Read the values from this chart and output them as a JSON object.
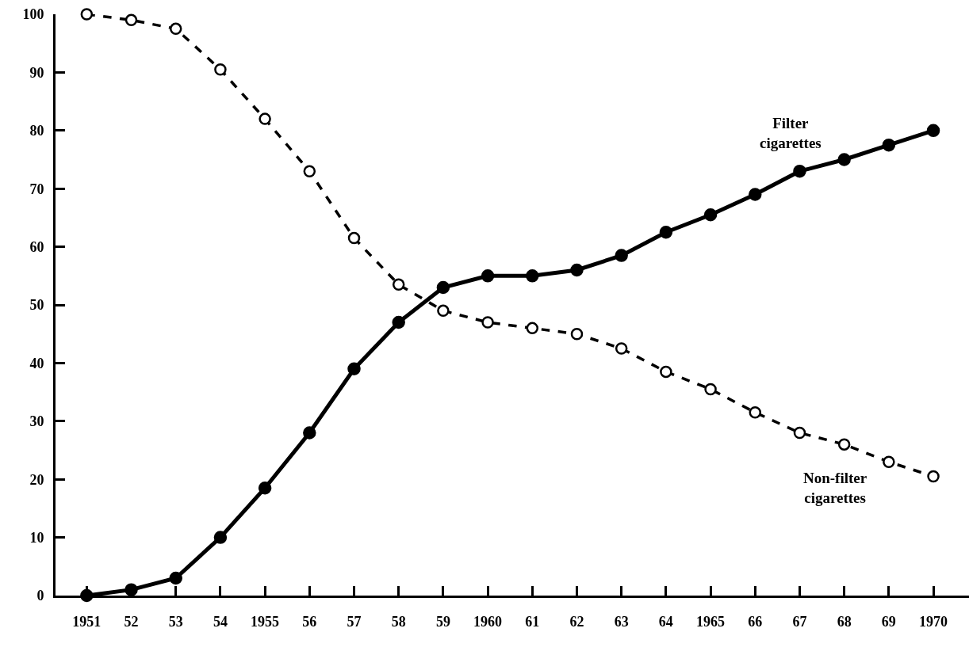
{
  "chart_data": {
    "type": "line",
    "x": [
      1951,
      1952,
      1953,
      1954,
      1955,
      1956,
      1957,
      1958,
      1959,
      1960,
      1961,
      1962,
      1963,
      1964,
      1965,
      1966,
      1967,
      1968,
      1969,
      1970
    ],
    "series": [
      {
        "name": "Filter cigarettes",
        "color": "#000000",
        "line_style": "solid",
        "marker": "circle",
        "values": [
          0,
          1,
          3,
          10,
          18.5,
          28,
          39,
          47,
          53,
          55,
          55,
          56,
          58.5,
          62.5,
          65.5,
          69,
          73,
          75,
          77.5,
          80
        ]
      },
      {
        "name": "Non-filter cigarettes",
        "color": "#000000",
        "line_style": "dashed",
        "marker": "circle",
        "values": [
          100,
          99,
          97.5,
          90.5,
          82,
          73,
          61.5,
          53.5,
          49,
          47,
          46,
          45,
          42.5,
          38.5,
          35.5,
          31.5,
          28,
          26,
          23,
          20.5
        ]
      }
    ],
    "xlim": [
      1950.3,
      1970.8
    ],
    "xticks": [
      1951,
      {
        "value": 1952,
        "label": "52"
      },
      {
        "value": 1953,
        "label": "53"
      },
      {
        "value": 1954,
        "label": "54"
      },
      1955,
      {
        "value": 1956,
        "label": "56"
      },
      {
        "value": 1957,
        "label": "57"
      },
      {
        "value": 1958,
        "label": "58"
      },
      {
        "value": 1959,
        "label": "59"
      },
      1960,
      {
        "value": 1961,
        "label": "61"
      },
      {
        "value": 1962,
        "label": "62"
      },
      {
        "value": 1963,
        "label": "63"
      },
      {
        "value": 1964,
        "label": "64"
      },
      1965,
      {
        "value": 1966,
        "label": "66"
      },
      {
        "value": 1967,
        "label": "67"
      },
      {
        "value": 1968,
        "label": "68"
      },
      {
        "value": 1969,
        "label": "69"
      },
      1970
    ],
    "ylim": [
      0,
      100
    ],
    "yticks": [
      0,
      10,
      20,
      30,
      40,
      50,
      60,
      70,
      80,
      90,
      100
    ],
    "grid": false,
    "legend": false
  }
}
